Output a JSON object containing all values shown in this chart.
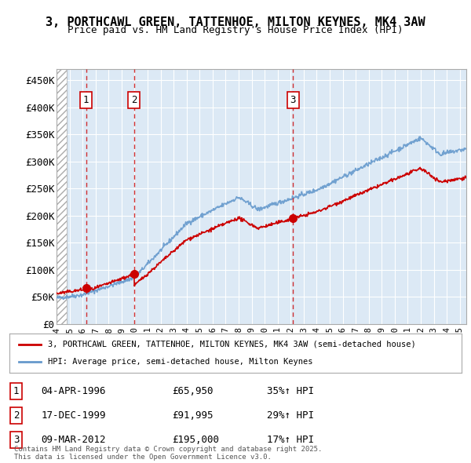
{
  "title_line1": "3, PORTHCAWL GREEN, TATTENHOE, MILTON KEYNES, MK4 3AW",
  "title_line2": "Price paid vs. HM Land Registry's House Price Index (HPI)",
  "ylabel": "",
  "background_color": "#ffffff",
  "plot_bg_color": "#dce9f5",
  "hatch_color": "#c0c0c0",
  "grid_color": "#ffffff",
  "red_line_color": "#cc0000",
  "blue_line_color": "#6699cc",
  "sale_marker_color": "#cc0000",
  "vline_color": "#cc0000",
  "legend_label_red": "3, PORTHCAWL GREEN, TATTENHOE, MILTON KEYNES, MK4 3AW (semi-detached house)",
  "legend_label_blue": "HPI: Average price, semi-detached house, Milton Keynes",
  "sales": [
    {
      "num": 1,
      "date_label": "04-APR-1996",
      "x": 1996.27,
      "price": 65950,
      "pct": "35%↑ HPI"
    },
    {
      "num": 2,
      "date_label": "17-DEC-1999",
      "x": 1999.96,
      "price": 91995,
      "pct": "29%↑ HPI"
    },
    {
      "num": 3,
      "date_label": "09-MAR-2012",
      "x": 2012.19,
      "price": 195000,
      "pct": "17%↑ HPI"
    }
  ],
  "footer_text": "Contains HM Land Registry data © Crown copyright and database right 2025.\nThis data is licensed under the Open Government Licence v3.0.",
  "xmin": 1994.0,
  "xmax": 2025.5,
  "ymin": 0,
  "ymax": 470000,
  "yticks": [
    0,
    50000,
    100000,
    150000,
    200000,
    250000,
    300000,
    350000,
    400000,
    450000
  ],
  "ytick_labels": [
    "£0",
    "£50K",
    "£100K",
    "£150K",
    "£200K",
    "£250K",
    "£300K",
    "£350K",
    "£400K",
    "£450K"
  ]
}
